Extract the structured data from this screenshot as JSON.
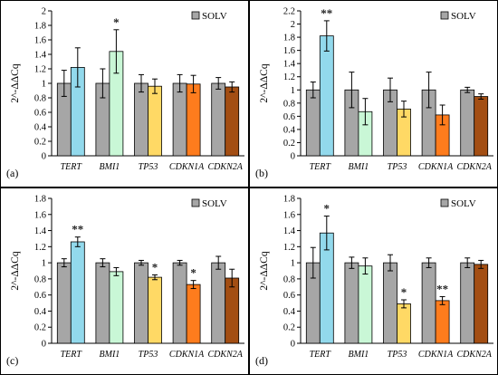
{
  "chart_data": [
    {
      "type": "bar",
      "panel_label": "(a)",
      "ylabel": "2^-ΔΔCq",
      "legend": "SOLV",
      "legend_position": "top-right",
      "ylim": [
        0,
        2
      ],
      "yticks": [
        "0",
        "0.2",
        "0.4",
        "0.6",
        "0.8",
        "1",
        "1.2",
        "1.4",
        "1.6",
        "1.8",
        "2"
      ],
      "categories": [
        "TERT",
        "BMI1",
        "TP53",
        "CDKN1A",
        "CDKN2A"
      ],
      "series": [
        {
          "name": "SOLV",
          "values": [
            1.0,
            1.0,
            1.0,
            1.0,
            1.0
          ],
          "errors": [
            0.18,
            0.2,
            0.12,
            0.12,
            0.08
          ]
        },
        {
          "values": [
            1.22,
            1.44,
            0.96,
            0.99,
            0.95
          ],
          "errors": [
            0.27,
            0.3,
            0.1,
            0.12,
            0.07
          ]
        }
      ],
      "significance": [
        "",
        "*",
        "",
        "",
        ""
      ]
    },
    {
      "type": "bar",
      "panel_label": "(b)",
      "ylabel": "2^-ΔΔCq",
      "legend": "SOLV",
      "legend_position": "top-right",
      "ylim": [
        0,
        2.2
      ],
      "yticks": [
        "0",
        "0.2",
        "0.4",
        "0.6",
        "0.8",
        "1",
        "1.2",
        "1.4",
        "1.6",
        "1.8",
        "2",
        "2.2"
      ],
      "categories": [
        "TERT",
        "BMI1",
        "TP53",
        "CDKN1A",
        "CDKN2A"
      ],
      "series": [
        {
          "name": "SOLV",
          "values": [
            1.0,
            1.0,
            1.0,
            1.0,
            1.0
          ],
          "errors": [
            0.12,
            0.27,
            0.18,
            0.27,
            0.04
          ]
        },
        {
          "values": [
            1.82,
            0.67,
            0.71,
            0.62,
            0.9
          ],
          "errors": [
            0.23,
            0.2,
            0.12,
            0.15,
            0.04
          ]
        }
      ],
      "significance": [
        "**",
        "",
        "",
        "",
        ""
      ]
    },
    {
      "type": "bar",
      "panel_label": "(c)",
      "ylabel": "2^-ΔΔCq",
      "legend": "SOLV",
      "legend_position": "top-right",
      "ylim": [
        0,
        1.8
      ],
      "yticks": [
        "0",
        "0.2",
        "0.4",
        "0.6",
        "0.8",
        "1",
        "1.2",
        "1.4",
        "1.6",
        "1.8"
      ],
      "categories": [
        "TERT",
        "BMI1",
        "TP53",
        "CDKN1A",
        "CDKN2A"
      ],
      "series": [
        {
          "name": "SOLV",
          "values": [
            1.0,
            1.0,
            1.0,
            1.0,
            1.0
          ],
          "errors": [
            0.05,
            0.05,
            0.03,
            0.03,
            0.08
          ]
        },
        {
          "values": [
            1.26,
            0.89,
            0.82,
            0.73,
            0.81
          ],
          "errors": [
            0.06,
            0.05,
            0.03,
            0.05,
            0.11
          ]
        }
      ],
      "significance": [
        "**",
        "",
        "*",
        "*",
        ""
      ]
    },
    {
      "type": "bar",
      "panel_label": "(d)",
      "ylabel": "2^-ΔΔCq",
      "legend": "SOLV",
      "legend_position": "top-right",
      "ylim": [
        0,
        1.8
      ],
      "yticks": [
        "0",
        "0.2",
        "0.4",
        "0.6",
        "0.8",
        "1",
        "1.2",
        "1.4",
        "1.6",
        "1.8"
      ],
      "categories": [
        "TERT",
        "BMI1",
        "TP53",
        "CDKN1A",
        "CDKN2A"
      ],
      "series": [
        {
          "name": "SOLV",
          "values": [
            1.0,
            1.0,
            1.0,
            1.0,
            1.0
          ],
          "errors": [
            0.19,
            0.07,
            0.1,
            0.06,
            0.06
          ]
        },
        {
          "values": [
            1.37,
            0.96,
            0.49,
            0.53,
            0.98
          ],
          "errors": [
            0.21,
            0.1,
            0.05,
            0.05,
            0.05
          ]
        }
      ],
      "significance": [
        "*",
        "",
        "*",
        "**",
        ""
      ]
    }
  ],
  "colors": {
    "solv": "#a6a6a6",
    "tert": "#92d9ec",
    "bmi1": "#c9f7d6",
    "tp53": "#ffd965",
    "cdkn1a": "#fe7c1d",
    "cdkn2a": "#a34e13",
    "border": "#000000"
  }
}
